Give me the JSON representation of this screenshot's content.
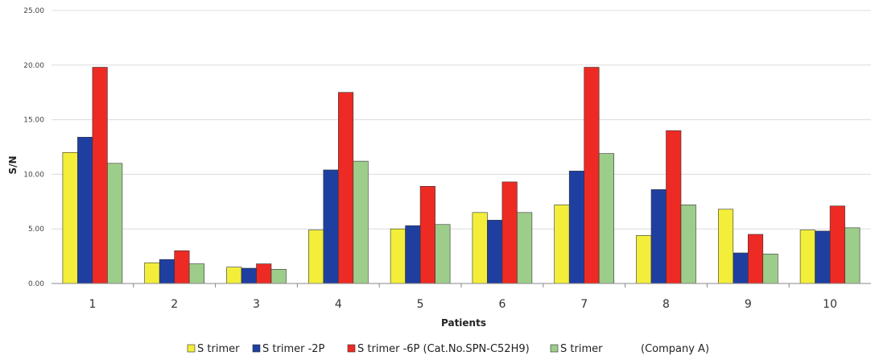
{
  "chart_data": {
    "type": "bar",
    "xlabel": "Patients",
    "ylabel": "S/N",
    "ylim": [
      0,
      25
    ],
    "yticks": [
      "0.00",
      "5.00",
      "10.00",
      "15.00",
      "20.00",
      "25.00"
    ],
    "grid": true,
    "legend_position": "bottom",
    "categories": [
      "1",
      "2",
      "3",
      "4",
      "5",
      "6",
      "7",
      "8",
      "9",
      "10"
    ],
    "series": [
      {
        "name": "S trimer",
        "color": "#f2ee3a",
        "values": [
          12.0,
          1.9,
          1.5,
          4.9,
          5.0,
          6.5,
          7.2,
          4.4,
          6.8,
          4.9
        ]
      },
      {
        "name": "S trimer -2P",
        "color": "#1f3fa0",
        "values": [
          13.4,
          2.2,
          1.4,
          10.4,
          5.3,
          5.8,
          10.3,
          8.6,
          2.8,
          4.8
        ]
      },
      {
        "name": "S trimer -6P (Cat.No.SPN-C52H9)",
        "color": "#ee2a24",
        "values": [
          19.8,
          3.0,
          1.8,
          17.5,
          8.9,
          9.3,
          19.8,
          14.0,
          4.5,
          7.1
        ]
      },
      {
        "name": "S trimer",
        "color": "#9dcd8a",
        "values": [
          11.0,
          1.8,
          1.3,
          11.2,
          5.4,
          6.5,
          11.9,
          7.2,
          2.7,
          5.1
        ]
      }
    ],
    "legend_suffix": "(Company A)"
  }
}
